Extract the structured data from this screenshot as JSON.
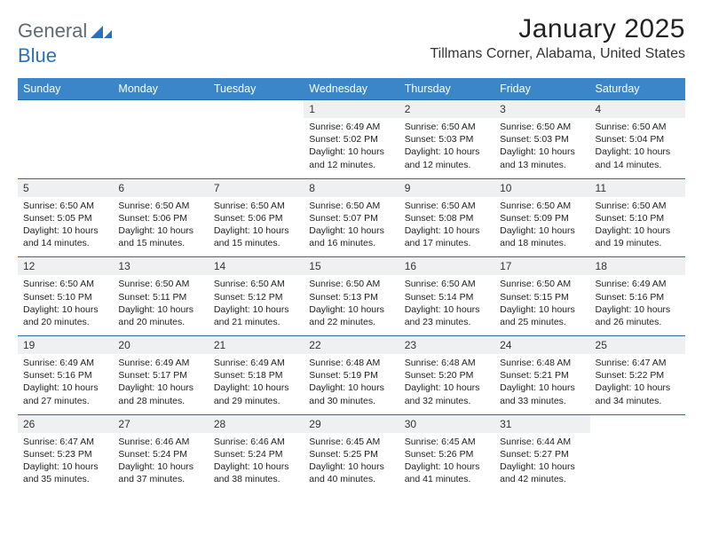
{
  "brand": {
    "general": "General",
    "blue": "Blue"
  },
  "title": "January 2025",
  "location": "Tillmans Corner, Alabama, United States",
  "colors": {
    "header_bg": "#3a86c8",
    "header_text": "#ffffff",
    "daynum_bg": "#eef0f2",
    "row_border": "#2c6aa5",
    "logo_grey": "#606a73",
    "logo_blue": "#2c71b8",
    "page_bg": "#ffffff",
    "body_text": "#222222"
  },
  "weekdays": [
    "Sunday",
    "Monday",
    "Tuesday",
    "Wednesday",
    "Thursday",
    "Friday",
    "Saturday"
  ],
  "weeks": [
    {
      "nums": [
        "",
        "",
        "",
        "1",
        "2",
        "3",
        "4"
      ],
      "cells": [
        "",
        "",
        "",
        "Sunrise: 6:49 AM\nSunset: 5:02 PM\nDaylight: 10 hours and 12 minutes.",
        "Sunrise: 6:50 AM\nSunset: 5:03 PM\nDaylight: 10 hours and 12 minutes.",
        "Sunrise: 6:50 AM\nSunset: 5:03 PM\nDaylight: 10 hours and 13 minutes.",
        "Sunrise: 6:50 AM\nSunset: 5:04 PM\nDaylight: 10 hours and 14 minutes."
      ]
    },
    {
      "nums": [
        "5",
        "6",
        "7",
        "8",
        "9",
        "10",
        "11"
      ],
      "cells": [
        "Sunrise: 6:50 AM\nSunset: 5:05 PM\nDaylight: 10 hours and 14 minutes.",
        "Sunrise: 6:50 AM\nSunset: 5:06 PM\nDaylight: 10 hours and 15 minutes.",
        "Sunrise: 6:50 AM\nSunset: 5:06 PM\nDaylight: 10 hours and 15 minutes.",
        "Sunrise: 6:50 AM\nSunset: 5:07 PM\nDaylight: 10 hours and 16 minutes.",
        "Sunrise: 6:50 AM\nSunset: 5:08 PM\nDaylight: 10 hours and 17 minutes.",
        "Sunrise: 6:50 AM\nSunset: 5:09 PM\nDaylight: 10 hours and 18 minutes.",
        "Sunrise: 6:50 AM\nSunset: 5:10 PM\nDaylight: 10 hours and 19 minutes."
      ]
    },
    {
      "nums": [
        "12",
        "13",
        "14",
        "15",
        "16",
        "17",
        "18"
      ],
      "cells": [
        "Sunrise: 6:50 AM\nSunset: 5:10 PM\nDaylight: 10 hours and 20 minutes.",
        "Sunrise: 6:50 AM\nSunset: 5:11 PM\nDaylight: 10 hours and 20 minutes.",
        "Sunrise: 6:50 AM\nSunset: 5:12 PM\nDaylight: 10 hours and 21 minutes.",
        "Sunrise: 6:50 AM\nSunset: 5:13 PM\nDaylight: 10 hours and 22 minutes.",
        "Sunrise: 6:50 AM\nSunset: 5:14 PM\nDaylight: 10 hours and 23 minutes.",
        "Sunrise: 6:50 AM\nSunset: 5:15 PM\nDaylight: 10 hours and 25 minutes.",
        "Sunrise: 6:49 AM\nSunset: 5:16 PM\nDaylight: 10 hours and 26 minutes."
      ]
    },
    {
      "nums": [
        "19",
        "20",
        "21",
        "22",
        "23",
        "24",
        "25"
      ],
      "cells": [
        "Sunrise: 6:49 AM\nSunset: 5:16 PM\nDaylight: 10 hours and 27 minutes.",
        "Sunrise: 6:49 AM\nSunset: 5:17 PM\nDaylight: 10 hours and 28 minutes.",
        "Sunrise: 6:49 AM\nSunset: 5:18 PM\nDaylight: 10 hours and 29 minutes.",
        "Sunrise: 6:48 AM\nSunset: 5:19 PM\nDaylight: 10 hours and 30 minutes.",
        "Sunrise: 6:48 AM\nSunset: 5:20 PM\nDaylight: 10 hours and 32 minutes.",
        "Sunrise: 6:48 AM\nSunset: 5:21 PM\nDaylight: 10 hours and 33 minutes.",
        "Sunrise: 6:47 AM\nSunset: 5:22 PM\nDaylight: 10 hours and 34 minutes."
      ]
    },
    {
      "nums": [
        "26",
        "27",
        "28",
        "29",
        "30",
        "31",
        ""
      ],
      "cells": [
        "Sunrise: 6:47 AM\nSunset: 5:23 PM\nDaylight: 10 hours and 35 minutes.",
        "Sunrise: 6:46 AM\nSunset: 5:24 PM\nDaylight: 10 hours and 37 minutes.",
        "Sunrise: 6:46 AM\nSunset: 5:24 PM\nDaylight: 10 hours and 38 minutes.",
        "Sunrise: 6:45 AM\nSunset: 5:25 PM\nDaylight: 10 hours and 40 minutes.",
        "Sunrise: 6:45 AM\nSunset: 5:26 PM\nDaylight: 10 hours and 41 minutes.",
        "Sunrise: 6:44 AM\nSunset: 5:27 PM\nDaylight: 10 hours and 42 minutes.",
        ""
      ]
    }
  ]
}
